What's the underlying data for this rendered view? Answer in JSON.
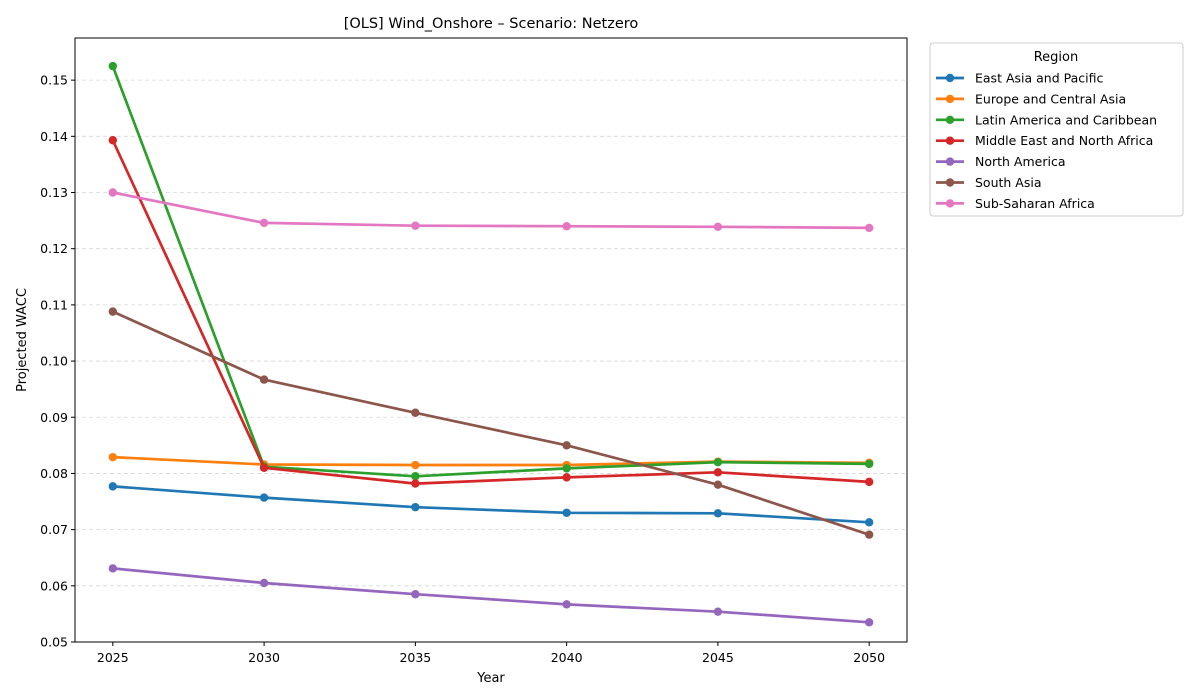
{
  "chart_data": {
    "type": "line",
    "title": "[OLS] Wind_Onshore – Scenario: Netzero",
    "xlabel": "Year",
    "ylabel": "Projected WACC",
    "x": [
      2025,
      2030,
      2035,
      2040,
      2045,
      2050
    ],
    "xlim": [
      2023.75,
      2051.25
    ],
    "ylim": [
      0.05,
      0.1575
    ],
    "yticks": [
      "0.05",
      "0.06",
      "0.07",
      "0.08",
      "0.09",
      "0.10",
      "0.11",
      "0.12",
      "0.13",
      "0.14",
      "0.15"
    ],
    "grid": "y-dashed",
    "legend": {
      "title": "Region",
      "placement": "outside-top-right"
    },
    "series": [
      {
        "name": "East Asia and Pacific",
        "color": "#1f77b4",
        "values": [
          0.0777,
          0.0757,
          0.074,
          0.073,
          0.0729,
          0.0713
        ]
      },
      {
        "name": "Europe and Central Asia",
        "color": "#ff7f0e",
        "values": [
          0.0829,
          0.0816,
          0.0815,
          0.0815,
          0.0821,
          0.0819
        ]
      },
      {
        "name": "Latin America and Caribbean",
        "color": "#2ca02c",
        "values": [
          0.1525,
          0.0812,
          0.0795,
          0.0809,
          0.082,
          0.0817
        ]
      },
      {
        "name": "Middle East and North Africa",
        "color": "#d62728",
        "values": [
          0.1393,
          0.081,
          0.0782,
          0.0793,
          0.0802,
          0.0785
        ]
      },
      {
        "name": "North America",
        "color": "#9467bd",
        "values": [
          0.0631,
          0.0605,
          0.0585,
          0.0567,
          0.0554,
          0.0535
        ]
      },
      {
        "name": "South Asia",
        "color": "#8c564b",
        "values": [
          0.1088,
          0.0967,
          0.0908,
          0.085,
          0.078,
          0.0691
        ]
      },
      {
        "name": "Sub-Saharan Africa",
        "color": "#e377c2",
        "values": [
          0.13,
          0.1246,
          0.1241,
          0.124,
          0.1239,
          0.1237
        ]
      }
    ]
  }
}
